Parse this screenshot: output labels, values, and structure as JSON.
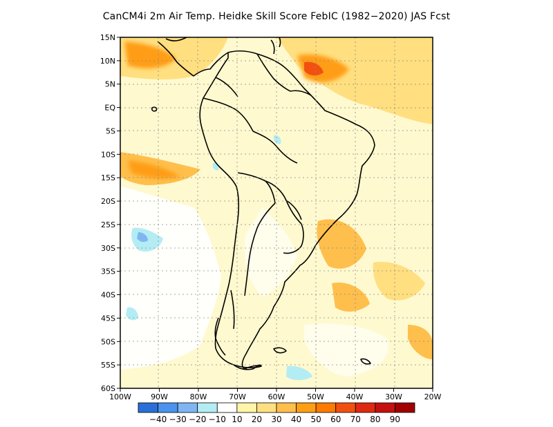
{
  "title": "CanCM4i  2m Air Temp. Heidke Skill Score FebIC (1982−2020) JAS Fcst",
  "lat_labels": [
    "15N",
    "10N",
    "5N",
    "EQ",
    "5S",
    "10S",
    "15S",
    "20S",
    "25S",
    "30S",
    "35S",
    "40S",
    "45S",
    "50S",
    "55S",
    "60S"
  ],
  "lon_labels": [
    "100W",
    "90W",
    "80W",
    "70W",
    "60W",
    "50W",
    "40W",
    "30W",
    "20W"
  ],
  "colorbar": {
    "colors": [
      "#2a6fd8",
      "#4b93ec",
      "#7fb6f2",
      "#b4ecf4",
      "#ffffff",
      "#fff4a8",
      "#ffdf80",
      "#ffbf4c",
      "#ff9e14",
      "#ff7a00",
      "#f25011",
      "#df2a12",
      "#c41010",
      "#a00000"
    ],
    "labels": [
      "−40",
      "−30",
      "−20",
      "−10",
      "10",
      "20",
      "30",
      "40",
      "50",
      "60",
      "70",
      "80",
      "90"
    ]
  }
}
